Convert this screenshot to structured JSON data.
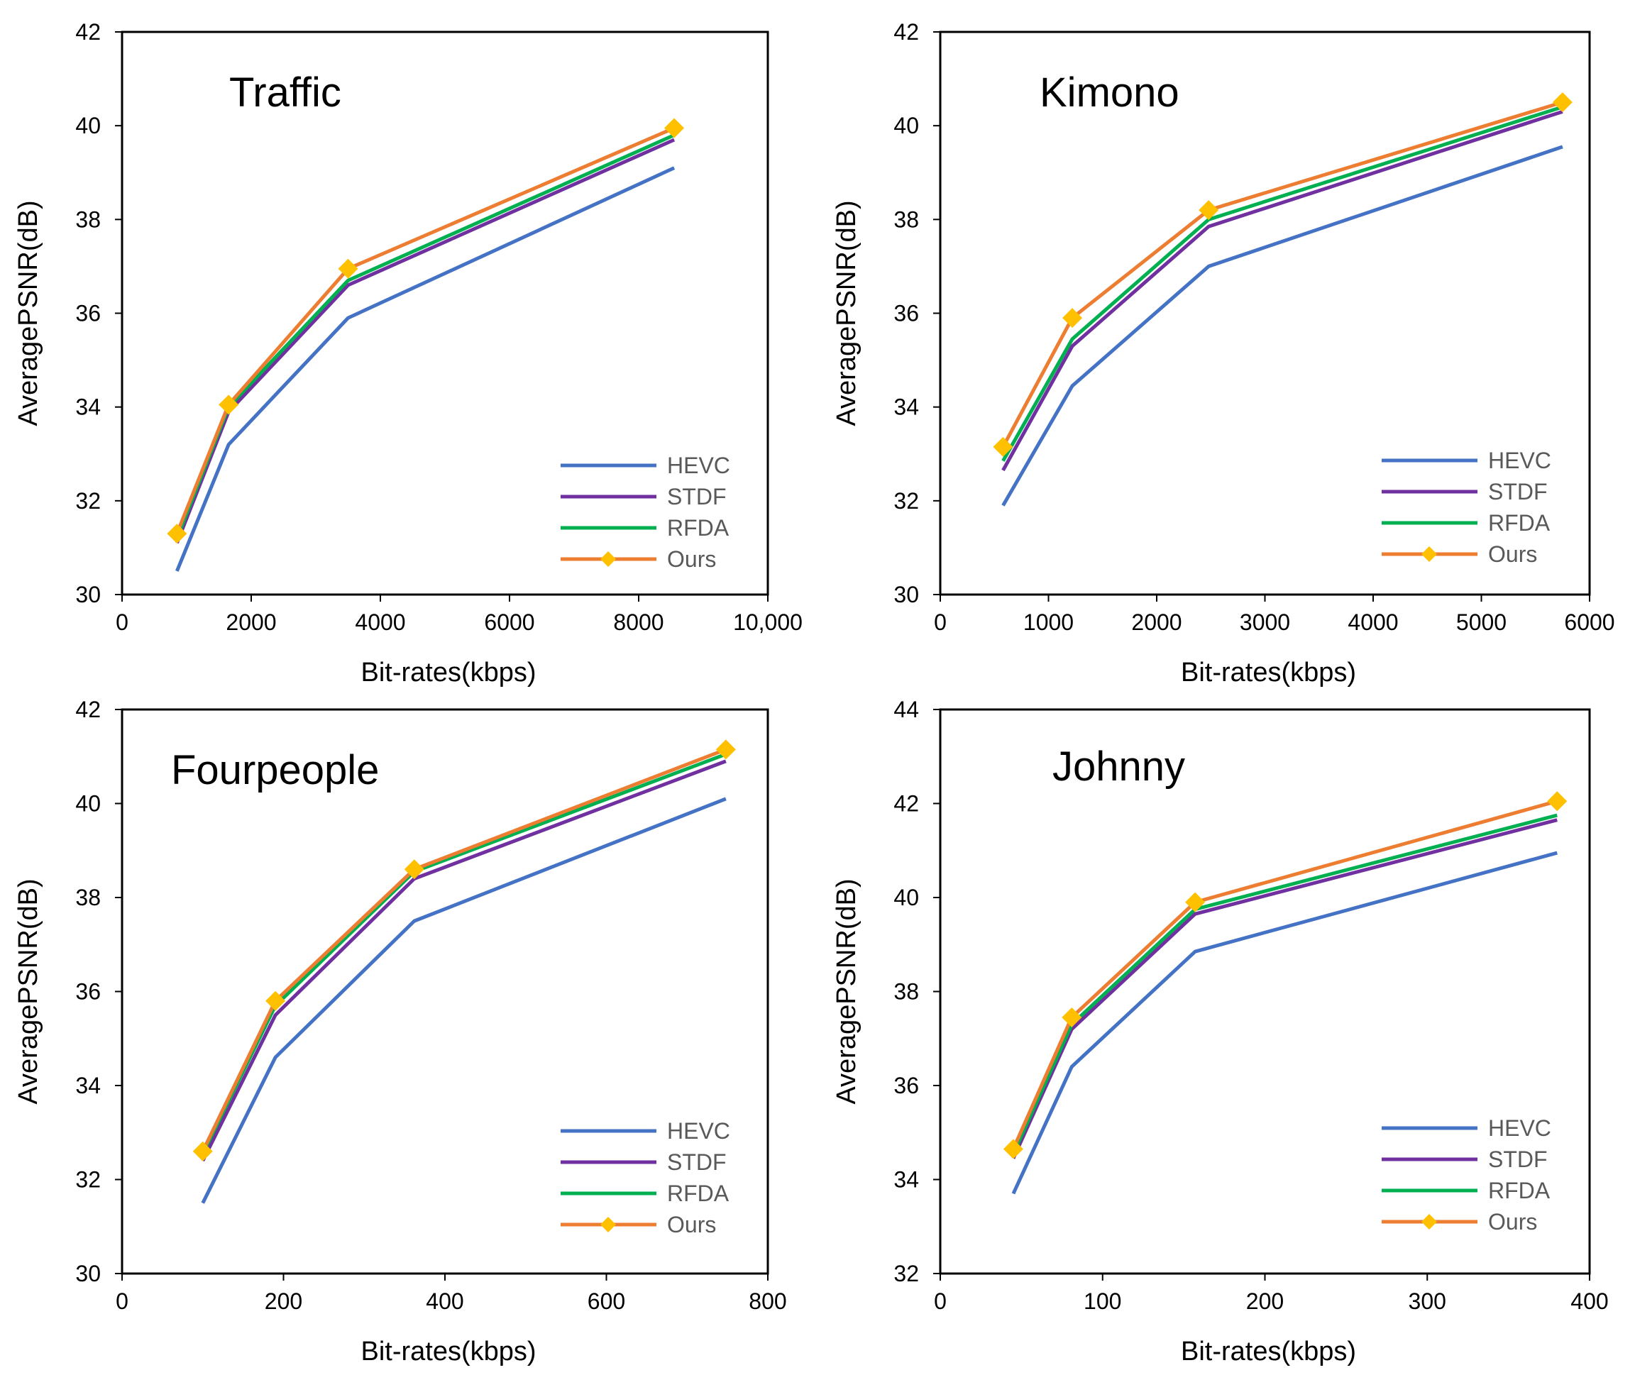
{
  "chart_data": [
    {
      "type": "line",
      "title": "Traffic",
      "xlabel": "Bit-rates(kbps)",
      "ylabel": "AveragePSNR(dB)",
      "xlim": [
        0,
        10000
      ],
      "ylim": [
        30,
        42
      ],
      "xticks": [
        0,
        2000,
        4000,
        6000,
        8000,
        10000
      ],
      "xtick_labels": [
        "0",
        "2000",
        "4000",
        "6000",
        "8000",
        "10,000"
      ],
      "yticks": [
        30,
        32,
        34,
        36,
        38,
        40,
        42
      ],
      "ytick_labels": [
        "30",
        "32",
        "34",
        "36",
        "38",
        "40",
        "42"
      ],
      "legend_position": "bottom-right",
      "series": [
        {
          "name": "HEVC",
          "x": [
            850,
            1650,
            3500,
            8550
          ],
          "y": [
            30.5,
            33.2,
            35.9,
            39.1
          ]
        },
        {
          "name": "STDF",
          "x": [
            850,
            1650,
            3500,
            8550
          ],
          "y": [
            31.1,
            33.9,
            36.6,
            39.7
          ]
        },
        {
          "name": "RFDA",
          "x": [
            850,
            1650,
            3500,
            8550
          ],
          "y": [
            31.2,
            34.0,
            36.7,
            39.8
          ]
        },
        {
          "name": "Ours",
          "x": [
            850,
            1650,
            3500,
            8550
          ],
          "y": [
            31.3,
            34.05,
            36.95,
            39.95
          ]
        }
      ]
    },
    {
      "type": "line",
      "title": "Kimono",
      "xlabel": "Bit-rates(kbps)",
      "ylabel": "AveragePSNR(dB)",
      "xlim": [
        0,
        6000
      ],
      "ylim": [
        30,
        42
      ],
      "xticks": [
        0,
        1000,
        2000,
        3000,
        4000,
        5000,
        6000
      ],
      "xtick_labels": [
        "0",
        "1000",
        "2000",
        "3000",
        "4000",
        "5000",
        "6000"
      ],
      "yticks": [
        30,
        32,
        34,
        36,
        38,
        40,
        42
      ],
      "ytick_labels": [
        "30",
        "32",
        "34",
        "36",
        "38",
        "40",
        "42"
      ],
      "legend_position": "bottom-right",
      "series": [
        {
          "name": "HEVC",
          "x": [
            580,
            1220,
            2480,
            5750
          ],
          "y": [
            31.9,
            34.45,
            37.0,
            39.55
          ]
        },
        {
          "name": "STDF",
          "x": [
            580,
            1220,
            2480,
            5750
          ],
          "y": [
            32.65,
            35.3,
            37.85,
            40.3
          ]
        },
        {
          "name": "RFDA",
          "x": [
            580,
            1220,
            2480,
            5750
          ],
          "y": [
            32.85,
            35.45,
            38.0,
            40.4
          ]
        },
        {
          "name": "Ours",
          "x": [
            580,
            1220,
            2480,
            5750
          ],
          "y": [
            33.15,
            35.9,
            38.2,
            40.5
          ]
        }
      ]
    },
    {
      "type": "line",
      "title": "Fourpeople",
      "xlabel": "Bit-rates(kbps)",
      "ylabel": "AveragePSNR(dB)",
      "xlim": [
        0,
        800
      ],
      "ylim": [
        30,
        42
      ],
      "xticks": [
        0,
        200,
        400,
        600,
        800
      ],
      "xtick_labels": [
        "0",
        "200",
        "400",
        "600",
        "800"
      ],
      "yticks": [
        30,
        32,
        34,
        36,
        38,
        40,
        42
      ],
      "ytick_labels": [
        "30",
        "32",
        "34",
        "36",
        "38",
        "40",
        "42"
      ],
      "legend_position": "bottom-right",
      "series": [
        {
          "name": "HEVC",
          "x": [
            100,
            190,
            362,
            748
          ],
          "y": [
            31.5,
            34.6,
            37.5,
            40.1
          ]
        },
        {
          "name": "STDF",
          "x": [
            100,
            190,
            362,
            748
          ],
          "y": [
            32.4,
            35.5,
            38.4,
            40.9
          ]
        },
        {
          "name": "RFDA",
          "x": [
            100,
            190,
            362,
            748
          ],
          "y": [
            32.55,
            35.7,
            38.55,
            41.05
          ]
        },
        {
          "name": "Ours",
          "x": [
            100,
            190,
            362,
            748
          ],
          "y": [
            32.6,
            35.8,
            38.6,
            41.15
          ]
        }
      ]
    },
    {
      "type": "line",
      "title": "Johnny",
      "xlabel": "Bit-rates(kbps)",
      "ylabel": "AveragePSNR(dB)",
      "xlim": [
        0,
        400
      ],
      "ylim": [
        32,
        44
      ],
      "xticks": [
        0,
        100,
        200,
        300,
        400
      ],
      "xtick_labels": [
        "0",
        "100",
        "200",
        "300",
        "400"
      ],
      "yticks": [
        32,
        34,
        36,
        38,
        40,
        42,
        44
      ],
      "ytick_labels": [
        "32",
        "34",
        "36",
        "38",
        "40",
        "42",
        "44"
      ],
      "legend_position": "bottom-right",
      "series": [
        {
          "name": "HEVC",
          "x": [
            45,
            81,
            157,
            380
          ],
          "y": [
            33.7,
            36.4,
            38.85,
            40.95
          ]
        },
        {
          "name": "STDF",
          "x": [
            45,
            81,
            157,
            380
          ],
          "y": [
            34.45,
            37.2,
            39.65,
            41.65
          ]
        },
        {
          "name": "RFDA",
          "x": [
            45,
            81,
            157,
            380
          ],
          "y": [
            34.55,
            37.3,
            39.75,
            41.75
          ]
        },
        {
          "name": "Ours",
          "x": [
            45,
            81,
            157,
            380
          ],
          "y": [
            34.65,
            37.45,
            39.9,
            42.05
          ]
        }
      ]
    }
  ],
  "colors": {
    "HEVC": "#4472c4",
    "STDF": "#7030a0",
    "RFDA": "#00b050",
    "Ours": "#ed7d31",
    "marker": "#ffc000"
  }
}
